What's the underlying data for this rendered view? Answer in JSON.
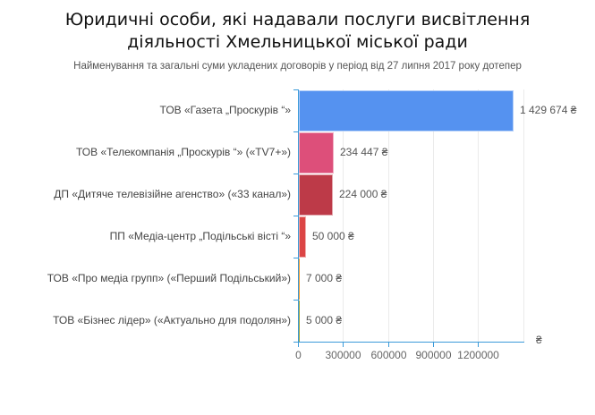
{
  "chart_data": {
    "type": "bar",
    "orientation": "horizontal",
    "title": "Юридичні особи, які надавали послуги висвітлення діяльності Хмельницької міської ради",
    "title_lines": [
      "Юридичні особи, які надавали послуги висвітлення",
      "діяльності Хмельницької міської ради"
    ],
    "subtitle": "Найменування та загальні суми укладених договорів у період від 27 липня 2017 року дотепер",
    "categories": [
      "ТОВ «Газета „Проскурів  “»",
      "ТОВ «Телекомпанія „Проскурів  “» («TV7+»)",
      "ДП «Дитяче телевізійне агенство» («33 канал»)",
      "ПП «Медіа-центр „Подільські вісті  “»",
      "ТОВ «Про медіа групп» («Перший Подільський»)",
      "ТОВ «Бізнес лідер» («Актуально для подолян»)"
    ],
    "values": [
      1429674,
      234447,
      224000,
      50000,
      7000,
      5000
    ],
    "value_labels": [
      "1 429 674 ₴",
      "234 447 ₴",
      "224 000 ₴",
      "50 000 ₴",
      "7 000 ₴",
      "5 000 ₴"
    ],
    "colors": [
      "#5592f0",
      "#dd4f7a",
      "#bd3a48",
      "#dc4545",
      "#f59c2c",
      "#a3a33a"
    ],
    "xlabel": "₴",
    "ylabel": "",
    "xlim": [
      0,
      1500000
    ],
    "x_ticks": [
      0,
      300000,
      600000,
      900000,
      1200000
    ],
    "x_tick_labels": [
      "0",
      "300000",
      "600000",
      "900000",
      "1200000"
    ],
    "grid": true,
    "legend": "none"
  }
}
